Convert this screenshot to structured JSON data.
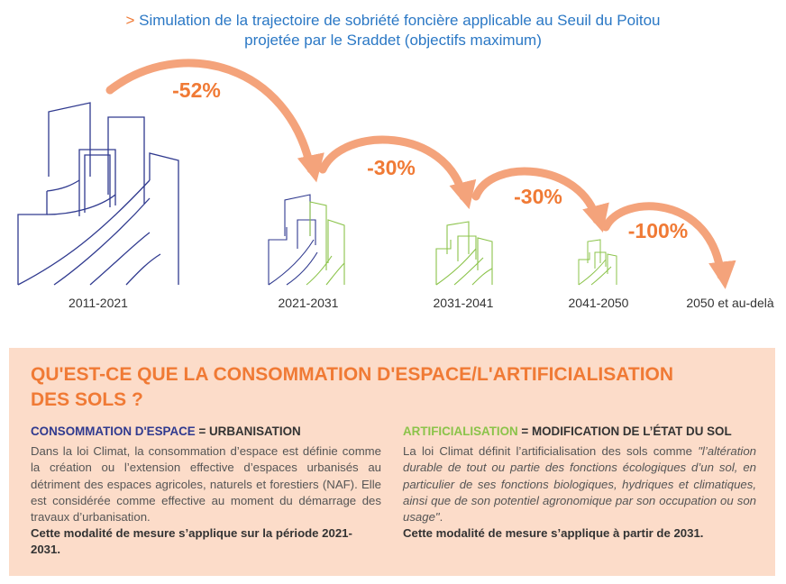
{
  "title": {
    "marker": ">",
    "line1": "Simulation de la trajectoire de sobriété foncière applicable au Seuil du Poitou",
    "line2": "projetée par le Sraddet (objectifs maximum)"
  },
  "steps": [
    {
      "period": "2011-2021"
    },
    {
      "period": "2021-2031"
    },
    {
      "period": "2031-2041"
    },
    {
      "period": "2041-2050"
    },
    {
      "period": "2050 et au-delà"
    }
  ],
  "reductions": [
    "-52%",
    "-30%",
    "-30%",
    "-100%"
  ],
  "colors": {
    "orange": "#f07a35",
    "arrow": "#f4a37b",
    "blue": "#303a8f",
    "green": "#8bc34a",
    "title_blue": "#2b78c5",
    "box_bg": "#fcdcc9"
  },
  "box": {
    "heading_line1": "QU'EST-CE QUE LA CONSOMMATION D'ESPACE/L'ARTIFICIALISATION",
    "heading_line2": "DES SOLS ?",
    "left": {
      "keyword": "CONSOMMATION D'ESPACE",
      "rest": " = URBANISATION",
      "text": "Dans la loi Climat, la consommation d’espace est définie comme la création ou l’extension effective d’espaces urbanisés au détriment des espaces agricoles, naturels et forestiers (NAF). Elle est considérée comme effective au moment du démarrage des travaux d’urbanisation.",
      "note": "Cette modalité de mesure s’applique sur la période 2021-2031."
    },
    "right": {
      "keyword": "ARTIFICIALISATION",
      "rest": " = MODIFICATION DE L’ÉTAT DU SOL",
      "text_intro": "La loi Climat définit l’artificialisation des sols comme ",
      "text_quote": "\"l’altération durable de tout ou partie des fonctions écologiques d’un sol, en particulier de ses fonctions biologiques, hydriques et climatiques, ainsi que de son potentiel agronomique par son occupation ou son usage\"",
      "text_end": ".",
      "note": "Cette modalité de mesure s’applique à partir de 2031."
    }
  }
}
